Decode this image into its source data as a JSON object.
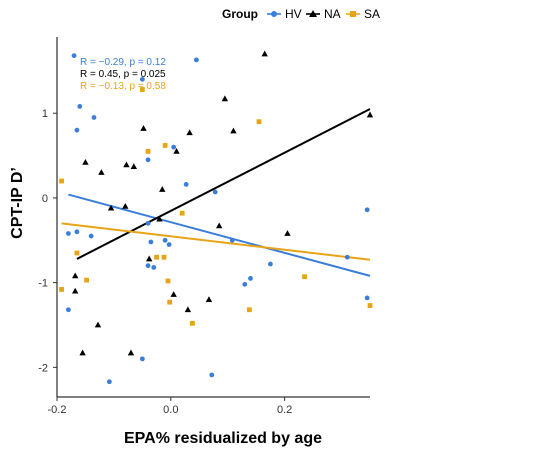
{
  "chart_data": {
    "type": "scatter",
    "xlabel": "EPA% residualized by age",
    "ylabel": "CPT-IP D’",
    "xlim": [
      -0.2,
      0.35
    ],
    "ylim": [
      -2.35,
      1.9
    ],
    "x_ticks": [
      -0.2,
      0.0,
      0.2
    ],
    "x_tick_labels": [
      "-0.2",
      "0.0",
      "0.2"
    ],
    "y_ticks": [
      -2,
      -1,
      0,
      1
    ],
    "y_tick_labels": [
      "-2",
      "-1",
      "0",
      "1"
    ],
    "grid": false,
    "legend": {
      "position": "top",
      "title": "Group",
      "entries": [
        {
          "label": "HV",
          "color": "#3a7ddb",
          "marker": "circle"
        },
        {
          "label": "NA",
          "color": "#000000",
          "marker": "triangle"
        },
        {
          "label": "SA",
          "color": "#e8a317",
          "marker": "square"
        }
      ]
    },
    "annotations": [
      {
        "group": "HV",
        "color": "#3a7ddb",
        "text": "R = −0.29, p = 0.12"
      },
      {
        "group": "NA",
        "color": "#000000",
        "text": "R = 0.45, p = 0.025"
      },
      {
        "group": "SA",
        "color": "#e8a317",
        "text": "R = −0.13, p = 0.58"
      }
    ],
    "series": [
      {
        "name": "HV",
        "color": "#3a7ddb",
        "marker": "circle",
        "fit": {
          "x": [
            -0.18,
            0.35
          ],
          "y": [
            0.04,
            -0.92
          ]
        },
        "points": [
          [
            -0.17,
            1.68
          ],
          [
            -0.16,
            1.08
          ],
          [
            -0.165,
            0.8
          ],
          [
            -0.135,
            0.95
          ],
          [
            -0.05,
            1.4
          ],
          [
            0.045,
            1.63
          ],
          [
            -0.04,
            0.45
          ],
          [
            0.005,
            0.6
          ],
          [
            0.027,
            0.16
          ],
          [
            0.078,
            0.07
          ],
          [
            -0.18,
            -0.42
          ],
          [
            -0.165,
            -0.4
          ],
          [
            -0.14,
            -0.45
          ],
          [
            -0.04,
            -0.3
          ],
          [
            -0.035,
            -0.52
          ],
          [
            -0.01,
            -0.5
          ],
          [
            -0.003,
            -0.55
          ],
          [
            -0.04,
            -0.8
          ],
          [
            -0.03,
            -0.82
          ],
          [
            -0.18,
            -1.32
          ],
          [
            -0.05,
            -1.9
          ],
          [
            -0.108,
            -2.17
          ],
          [
            0.072,
            -2.09
          ],
          [
            0.108,
            -0.5
          ],
          [
            0.13,
            -1.02
          ],
          [
            0.14,
            -0.95
          ],
          [
            0.175,
            -0.78
          ],
          [
            0.31,
            -0.7
          ],
          [
            0.345,
            -0.14
          ],
          [
            0.345,
            -1.18
          ]
        ]
      },
      {
        "name": "NA",
        "color": "#000000",
        "marker": "triangle",
        "fit": {
          "x": [
            -0.165,
            0.35
          ],
          "y": [
            -0.72,
            1.05
          ]
        },
        "points": [
          [
            -0.15,
            0.42
          ],
          [
            -0.122,
            0.3
          ],
          [
            -0.078,
            0.39
          ],
          [
            -0.065,
            0.37
          ],
          [
            -0.048,
            0.82
          ],
          [
            -0.015,
            0.1
          ],
          [
            0.01,
            0.55
          ],
          [
            0.033,
            0.77
          ],
          [
            0.095,
            1.17
          ],
          [
            0.11,
            0.79
          ],
          [
            0.165,
            1.7
          ],
          [
            0.35,
            0.98
          ],
          [
            -0.105,
            -0.12
          ],
          [
            -0.08,
            -0.1
          ],
          [
            -0.02,
            -0.25
          ],
          [
            -0.038,
            -0.72
          ],
          [
            0.085,
            -0.33
          ],
          [
            0.205,
            -0.42
          ],
          [
            -0.168,
            -0.92
          ],
          [
            -0.168,
            -1.1
          ],
          [
            -0.128,
            -1.5
          ],
          [
            -0.155,
            -1.83
          ],
          [
            -0.07,
            -1.83
          ],
          [
            0.005,
            -1.14
          ],
          [
            0.03,
            -1.32
          ],
          [
            0.067,
            -1.2
          ]
        ]
      },
      {
        "name": "SA",
        "color": "#e8a317",
        "marker": "square",
        "fit": {
          "x": [
            -0.192,
            0.35
          ],
          "y": [
            -0.3,
            -0.73
          ]
        },
        "points": [
          [
            -0.05,
            1.28
          ],
          [
            0.155,
            0.9
          ],
          [
            -0.04,
            0.55
          ],
          [
            -0.01,
            0.62
          ],
          [
            -0.192,
            0.2
          ],
          [
            0.02,
            -0.18
          ],
          [
            -0.165,
            -0.65
          ],
          [
            -0.012,
            -0.7
          ],
          [
            -0.025,
            -0.7
          ],
          [
            -0.192,
            -1.08
          ],
          [
            -0.148,
            -0.97
          ],
          [
            -0.005,
            -0.98
          ],
          [
            -0.002,
            -1.23
          ],
          [
            0.235,
            -0.93
          ],
          [
            0.138,
            -1.32
          ],
          [
            0.038,
            -1.48
          ],
          [
            0.35,
            -1.27
          ]
        ]
      }
    ]
  }
}
